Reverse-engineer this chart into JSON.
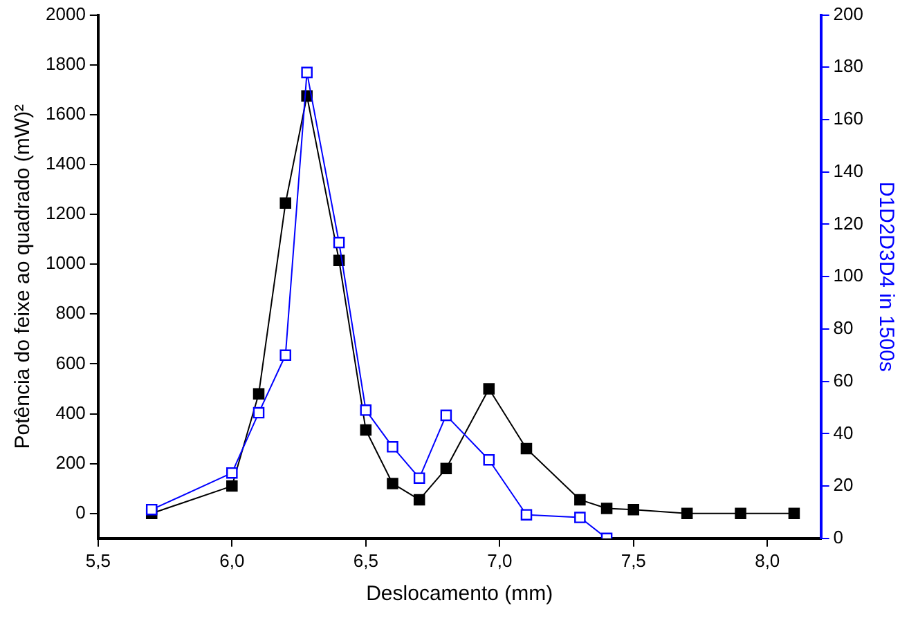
{
  "chart_data": {
    "type": "line",
    "xlabel": "Deslocamento (mm)",
    "ylabel": "Potência do feixe ao quadrado (mW)²",
    "y2label": "D1D2D3D4 in 1500s",
    "xlim": [
      5.5,
      8.2
    ],
    "xticks": [
      {
        "value": 5.5,
        "label": "5,5"
      },
      {
        "value": 6,
        "label": "6,0"
      },
      {
        "value": 6.5,
        "label": "6,5"
      },
      {
        "value": 7,
        "label": "7,0"
      },
      {
        "value": 7.5,
        "label": "7,5"
      },
      {
        "value": 8,
        "label": "8,0"
      }
    ],
    "ylim": [
      -100,
      2000
    ],
    "yticks": [
      0,
      200,
      400,
      600,
      800,
      1000,
      1200,
      1400,
      1600,
      1800,
      2000
    ],
    "y2lim": [
      0,
      200
    ],
    "y2ticks": [
      0,
      20,
      40,
      60,
      80,
      100,
      120,
      140,
      160,
      180,
      200
    ],
    "grid": false,
    "legend": false,
    "marker": "square",
    "line_style": "solid",
    "series": [
      {
        "color": "#000000",
        "x": [
          5.7,
          6.0,
          6.1,
          6.2,
          6.28,
          6.4,
          6.5,
          6.6,
          6.7,
          6.8,
          6.96,
          7.1,
          7.3,
          7.4,
          7.5,
          7.7,
          7.9,
          8.1
        ],
        "values": [
          0,
          110,
          480,
          1245,
          1675,
          1015,
          335,
          120,
          55,
          180,
          500,
          260,
          55,
          20,
          15,
          0,
          0,
          0
        ]
      },
      {
        "color": "#0000ff",
        "axis": "y2",
        "x": [
          5.7,
          6.0,
          6.1,
          6.2,
          6.28,
          6.4,
          6.5,
          6.6,
          6.7,
          6.8,
          6.96,
          7.1,
          7.3,
          7.4
        ],
        "values": [
          11,
          25,
          48,
          70,
          178,
          113,
          49,
          35,
          23,
          47,
          30,
          9,
          8,
          0
        ]
      }
    ]
  }
}
